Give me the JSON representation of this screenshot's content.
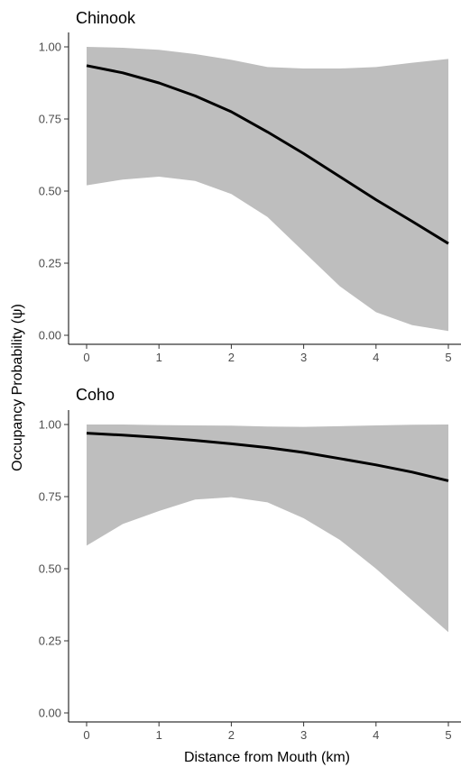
{
  "figure": {
    "ylabel": "Occupancy Probability (ψ)",
    "xlabel": "Distance from Mouth (km)"
  },
  "chart_data": [
    {
      "type": "area",
      "title": "Chinook",
      "xlim": [
        0,
        5
      ],
      "ylim": [
        0,
        1
      ],
      "x_ticks": [
        0,
        1,
        2,
        3,
        4,
        5
      ],
      "y_ticks": [
        "0.00",
        "0.25",
        "0.50",
        "0.75",
        "1.00"
      ],
      "grid": false,
      "series": [
        {
          "x": [
            0,
            0.5,
            1,
            1.5,
            2,
            2.5,
            3,
            3.5,
            4,
            4.5,
            5
          ],
          "mean": [
            0.935,
            0.91,
            0.875,
            0.83,
            0.775,
            0.705,
            0.63,
            0.55,
            0.47,
            0.395,
            0.318
          ],
          "lower": [
            0.52,
            0.54,
            0.55,
            0.535,
            0.49,
            0.41,
            0.29,
            0.17,
            0.08,
            0.035,
            0.015
          ],
          "upper": [
            1.0,
            0.997,
            0.99,
            0.975,
            0.955,
            0.93,
            0.925,
            0.925,
            0.93,
            0.945,
            0.958
          ]
        }
      ]
    },
    {
      "type": "area",
      "title": "Coho",
      "xlim": [
        0,
        5
      ],
      "ylim": [
        0,
        1
      ],
      "x_ticks": [
        0,
        1,
        2,
        3,
        4,
        5
      ],
      "y_ticks": [
        "0.00",
        "0.25",
        "0.50",
        "0.75",
        "1.00"
      ],
      "grid": false,
      "series": [
        {
          "x": [
            0,
            0.5,
            1,
            1.5,
            2,
            2.5,
            3,
            3.5,
            4,
            4.5,
            5
          ],
          "mean": [
            0.97,
            0.963,
            0.955,
            0.945,
            0.933,
            0.92,
            0.903,
            0.882,
            0.86,
            0.835,
            0.805
          ],
          "lower": [
            0.58,
            0.655,
            0.7,
            0.74,
            0.748,
            0.73,
            0.675,
            0.6,
            0.5,
            0.39,
            0.28
          ],
          "upper": [
            1.0,
            1.0,
            0.998,
            0.997,
            0.996,
            0.993,
            0.992,
            0.994,
            0.997,
            0.999,
            1.0
          ]
        }
      ]
    }
  ],
  "colors": {
    "band": "#bebebe",
    "line": "#000000",
    "axis": "#000000"
  }
}
